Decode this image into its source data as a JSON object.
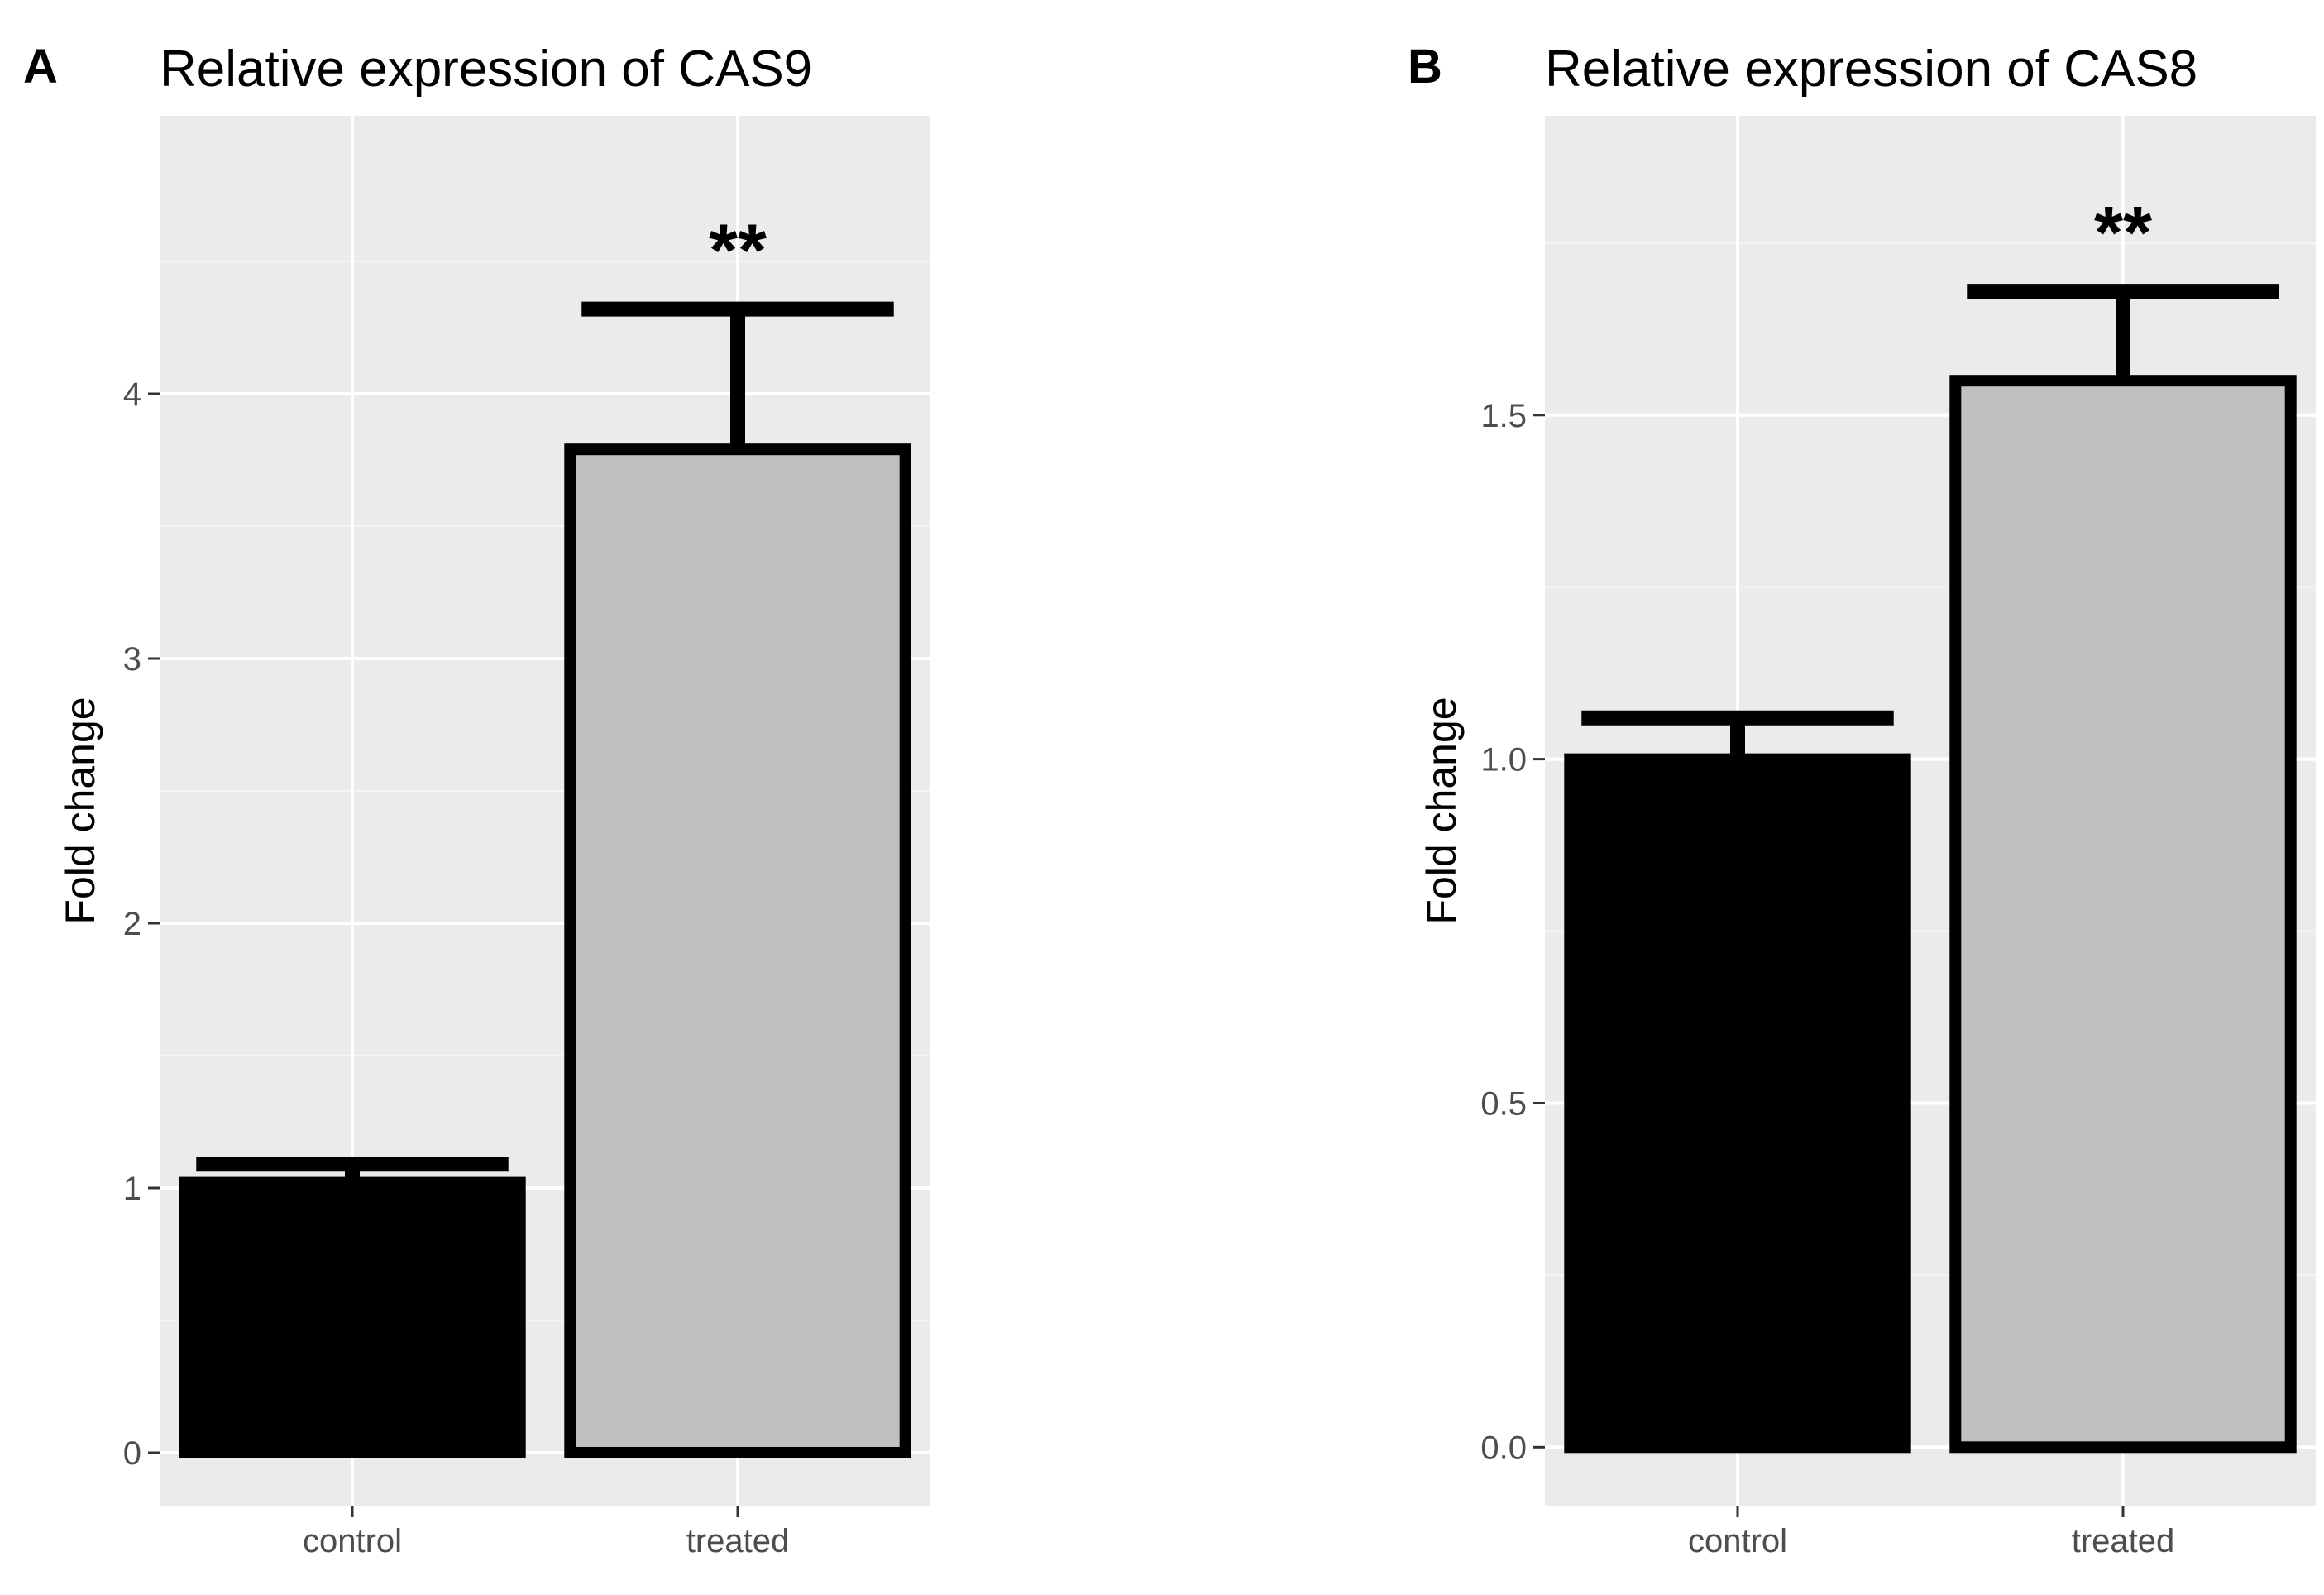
{
  "chart_data": [
    {
      "panel": "A",
      "type": "bar",
      "title": "Relative expression of CAS9",
      "xlabel": "",
      "ylabel": "Fold change",
      "categories": [
        "control",
        "treated"
      ],
      "values": [
        1.02,
        3.79
      ],
      "error_upper": [
        1.09,
        4.32
      ],
      "bar_colors": [
        "#000000",
        "#c0c0c0"
      ],
      "edge_color": "#000000",
      "annotations": [
        "",
        "**"
      ],
      "yticks": [
        0,
        1,
        2,
        3,
        4
      ],
      "ytick_labels": [
        "0",
        "1",
        "2",
        "3",
        "4"
      ],
      "ylim": [
        -0.2,
        5.05
      ],
      "grid": true
    },
    {
      "panel": "B",
      "type": "bar",
      "title": "Relative expression of CAS8",
      "xlabel": "",
      "ylabel": "Fold change",
      "categories": [
        "control",
        "treated"
      ],
      "values": [
        1.0,
        1.55
      ],
      "error_upper": [
        1.06,
        1.68
      ],
      "bar_colors": [
        "#000000",
        "#c0c0c0"
      ],
      "edge_color": "#000000",
      "annotations": [
        "",
        "**"
      ],
      "yticks": [
        0.0,
        0.5,
        1.0,
        1.5
      ],
      "ytick_labels": [
        "0.0",
        "0.5",
        "1.0",
        "1.5"
      ],
      "ylim": [
        -0.085,
        1.935
      ],
      "grid": true
    }
  ],
  "colors": {
    "panel_background": "#ebebeb",
    "grid_major": "#ffffff",
    "grid_minor": "#f5f5f5",
    "tick_text": "#4d4d4d"
  }
}
